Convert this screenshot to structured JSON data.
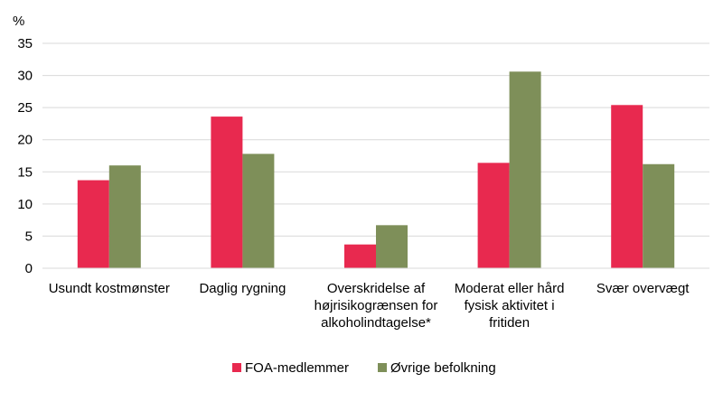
{
  "chart_data": {
    "type": "bar",
    "y_unit_label": "%",
    "categories": [
      "Usundt kostmønster",
      "Daglig rygning",
      "Overskridelse af højrisikogrænsen for alkoholindtagelse*",
      "Moderat eller hård fysisk aktivitet i fritiden",
      "Svær overvægt"
    ],
    "category_lines": [
      [
        "Usundt kostmønster"
      ],
      [
        "Daglig rygning"
      ],
      [
        "Overskridelse af",
        "højrisikogrænsen for",
        "alkoholindtagelse*"
      ],
      [
        "Moderat eller hård",
        "fysisk aktivitet i",
        "fritiden"
      ],
      [
        "Svær overvægt"
      ]
    ],
    "series": [
      {
        "name": "FOA-medlemmer",
        "color": "#e8294f",
        "values": [
          13.7,
          23.6,
          3.7,
          16.4,
          25.4
        ]
      },
      {
        "name": "Øvrige befolkning",
        "color": "#7e8f59",
        "values": [
          16.0,
          17.8,
          6.7,
          30.6,
          16.2
        ]
      }
    ],
    "ylim": [
      0,
      35
    ],
    "yticks": [
      0,
      5,
      10,
      15,
      20,
      25,
      30,
      35
    ],
    "grid": true,
    "legend_position": "bottom"
  }
}
